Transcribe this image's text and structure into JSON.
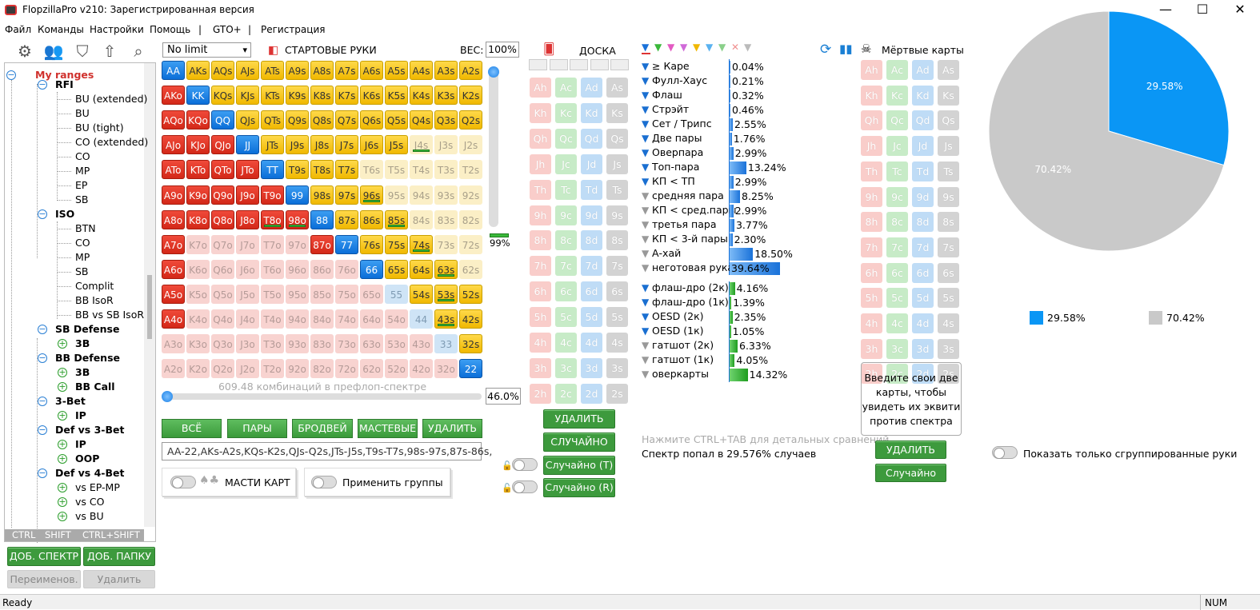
{
  "window": {
    "title": "FlopzillaPro v210: Зарегистрированная версия"
  },
  "menu": [
    "Файл",
    "Команды",
    "Настройки",
    "Помощь",
    "|",
    "GTO+",
    "|",
    "Регистрация"
  ],
  "tree": {
    "root": "My ranges",
    "items": [
      {
        "label": "RFI",
        "x": 68,
        "y": 104,
        "bold": true,
        "tog": "−"
      },
      {
        "label": "BU (extended)",
        "x": 93,
        "y": 122
      },
      {
        "label": "BU",
        "x": 93,
        "y": 140
      },
      {
        "label": "BU (tight)",
        "x": 93,
        "y": 158
      },
      {
        "label": "CO (extended)",
        "x": 93,
        "y": 176
      },
      {
        "label": "CO",
        "x": 93,
        "y": 194
      },
      {
        "label": "MP",
        "x": 93,
        "y": 212
      },
      {
        "label": "EP",
        "x": 93,
        "y": 230
      },
      {
        "label": "SB",
        "x": 93,
        "y": 248
      },
      {
        "label": "ISO",
        "x": 68,
        "y": 266,
        "bold": true,
        "tog": "−"
      },
      {
        "label": "BTN",
        "x": 93,
        "y": 284
      },
      {
        "label": "CO",
        "x": 93,
        "y": 302
      },
      {
        "label": "MP",
        "x": 93,
        "y": 320
      },
      {
        "label": "SB",
        "x": 93,
        "y": 338
      },
      {
        "label": "Complit",
        "x": 93,
        "y": 356
      },
      {
        "label": "BB IsoR",
        "x": 93,
        "y": 374
      },
      {
        "label": "BB vs SB IsoR",
        "x": 93,
        "y": 392
      },
      {
        "label": "SB Defense",
        "x": 68,
        "y": 410,
        "bold": true,
        "tog": "−"
      },
      {
        "label": "3B",
        "x": 93,
        "y": 428,
        "bold": true,
        "tog": "+"
      },
      {
        "label": "BB Defense",
        "x": 68,
        "y": 446,
        "bold": true,
        "tog": "−"
      },
      {
        "label": "3B",
        "x": 93,
        "y": 464,
        "bold": true,
        "tog": "+"
      },
      {
        "label": "BB Call",
        "x": 93,
        "y": 482,
        "bold": true,
        "tog": "+"
      },
      {
        "label": "3-Bet",
        "x": 68,
        "y": 500,
        "bold": true,
        "tog": "−"
      },
      {
        "label": "IP",
        "x": 93,
        "y": 518,
        "bold": true,
        "tog": "+"
      },
      {
        "label": "Def vs 3-Bet",
        "x": 68,
        "y": 536,
        "bold": true,
        "tog": "−"
      },
      {
        "label": "IP",
        "x": 93,
        "y": 554,
        "bold": true,
        "tog": "+"
      },
      {
        "label": "OOP",
        "x": 93,
        "y": 572,
        "bold": true,
        "tog": "+"
      },
      {
        "label": "Def vs 4-Bet",
        "x": 68,
        "y": 590,
        "bold": true,
        "tog": "−"
      },
      {
        "label": "vs EP-MP",
        "x": 93,
        "y": 608,
        "tog": "+"
      },
      {
        "label": "vs CO",
        "x": 93,
        "y": 626,
        "tog": "+"
      },
      {
        "label": "vs BU",
        "x": 93,
        "y": 644,
        "tog": "+"
      }
    ],
    "kbd": [
      "CTRL",
      "SHIFT",
      "CTRL+SHIFT"
    ]
  },
  "left_buttons": {
    "add_range": "ДОБ. СПЕКТР",
    "add_folder": "ДОБ. ПАПКУ",
    "rename": "Переименов.",
    "delete": "Удалить"
  },
  "range": {
    "game": "No limit",
    "title": "СТАРТОВЫЕ РУКИ",
    "weight_label": "ВЕС:",
    "weight": "100%",
    "slider_pct": "99%",
    "combos": "609.48 комбинаций в префлоп-спектре",
    "pct": "46.0%",
    "buttons": [
      "ВСЁ",
      "ПАРЫ",
      "БРОДВЕЙ",
      "МАСТЕВЫЕ",
      "УДАЛИТЬ"
    ],
    "text": "AA-22,AKs-A2s,KQs-K2s,QJs-Q2s,JTs-J5s,T9s-T7s,98s-97s,87s-86s,",
    "suits_label": "МАСТИ КАРТ",
    "groups_label": "Применить группы"
  },
  "grid": {
    "ranks": [
      "A",
      "K",
      "Q",
      "J",
      "T",
      "9",
      "8",
      "7",
      "6",
      "5",
      "4",
      "3",
      "2"
    ],
    "selected": [
      "1111111111111",
      "1111111111111",
      "1111111111111",
      "1111111111000",
      "1111111100000",
      "1111111110000",
      "1111111111000",
      "1000001111100",
      "1000000011110",
      "1000000000111",
      "1000000000011",
      "0000000000001",
      "0000000000001"
    ],
    "underlined": [
      "J4s",
      "96s",
      "74s",
      "85s",
      "63s",
      "53s",
      "43s",
      "T8o",
      "98o"
    ]
  },
  "board": {
    "title": "ДОСКА",
    "buttons": [
      "УДАЛИТЬ",
      "СЛУЧАЙНО",
      "Случайно (T)",
      "Случайно (R)"
    ]
  },
  "stats": {
    "made": [
      {
        "label": "≥ Каре",
        "pct": "0.04%",
        "value": 0.04,
        "f": "b"
      },
      {
        "label": "Фулл-Хаус",
        "pct": "0.21%",
        "value": 0.21,
        "f": "b"
      },
      {
        "label": "Флаш",
        "pct": "0.32%",
        "value": 0.32,
        "f": "b"
      },
      {
        "label": "Стрэйт",
        "pct": "0.46%",
        "value": 0.46,
        "f": "b"
      },
      {
        "label": "Сет / Трипс",
        "pct": "2.55%",
        "value": 2.55,
        "f": "b"
      },
      {
        "label": "Две пары",
        "pct": "1.76%",
        "value": 1.76,
        "f": "b"
      },
      {
        "label": "Оверпара",
        "pct": "2.99%",
        "value": 2.99,
        "f": "b"
      },
      {
        "label": "Топ-пара",
        "pct": "13.24%",
        "value": 13.24,
        "f": "b"
      },
      {
        "label": "КП < ТП",
        "pct": "2.99%",
        "value": 2.99,
        "f": "b"
      },
      {
        "label": "средняя пара",
        "pct": "8.25%",
        "value": 8.25,
        "f": "g"
      },
      {
        "label": "КП < сред.пары",
        "pct": "2.99%",
        "value": 2.99,
        "f": "g"
      },
      {
        "label": "третья пара",
        "pct": "3.77%",
        "value": 3.77,
        "f": "g"
      },
      {
        "label": "КП < 3-й пары",
        "pct": "2.30%",
        "value": 2.3,
        "f": "g"
      },
      {
        "label": "А-хай",
        "pct": "18.50%",
        "value": 18.5,
        "f": "g"
      },
      {
        "label": "неготовая рука",
        "pct": "39.64%",
        "value": 39.64,
        "f": "g"
      }
    ],
    "draws": [
      {
        "label": "флаш-дро (2к)",
        "pct": "4.16%",
        "value": 4.16,
        "f": "b"
      },
      {
        "label": "флаш-дро (1к)",
        "pct": "1.39%",
        "value": 1.39,
        "f": "b"
      },
      {
        "label": "OESD (2к)",
        "pct": "2.35%",
        "value": 2.35,
        "f": "b"
      },
      {
        "label": "OESD (1к)",
        "pct": "1.05%",
        "value": 1.05,
        "f": "b"
      },
      {
        "label": "гатшот (2к)",
        "pct": "6.33%",
        "value": 6.33,
        "f": "g"
      },
      {
        "label": "гатшот (1к)",
        "pct": "4.05%",
        "value": 4.05,
        "f": "g"
      },
      {
        "label": "оверкарты",
        "pct": "14.32%",
        "value": 14.32,
        "f": "g"
      }
    ],
    "hint": "Нажмите CTRL+TAB для детальных сравнений",
    "hit": "Спектр попал в 29.576% случаев"
  },
  "dead": {
    "title": "Мёртвые карты",
    "info": "Введите свои две карты, чтобы увидеть их эквити против спектра",
    "buttons": [
      "УДАЛИТЬ",
      "Случайно"
    ]
  },
  "pie": {
    "slices": [
      {
        "label": "29.58%",
        "value": 29.58,
        "color": "#0a96f5"
      },
      {
        "label": "70.42%",
        "value": 70.42,
        "color": "#c9c9c9"
      }
    ],
    "legend": [
      "29.58%",
      "70.42%"
    ],
    "toggle_label": "Показать только сгруппированные руки"
  },
  "status": {
    "left": "Ready",
    "right": "NUM"
  }
}
